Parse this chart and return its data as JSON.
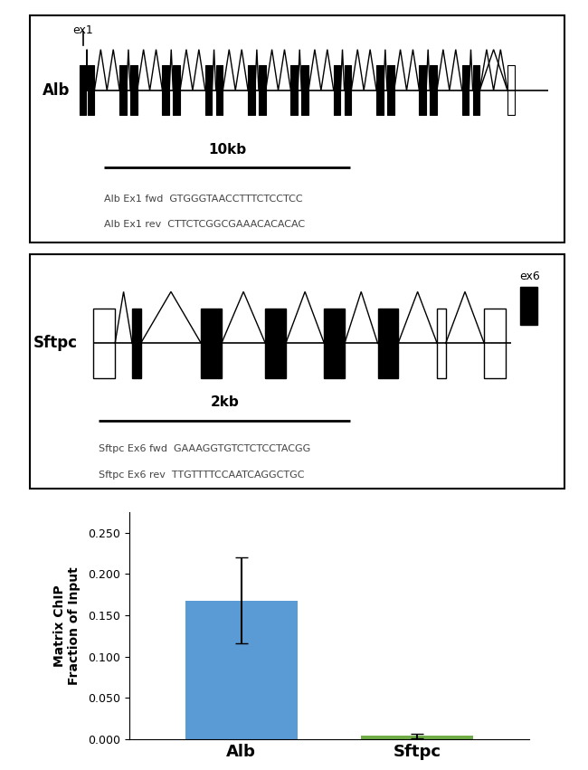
{
  "alb_label": "Alb",
  "alb_ex_label": "ex1",
  "alb_scale_label": "10kb",
  "alb_fwd_primer": "Alb Ex1 fwd  GTGGGTAACCTTTCTCCTCC",
  "alb_rev_primer": "Alb Ex1 rev  CTTCTCGGCGAAACACACAC",
  "sftpc_label": "Sftpc",
  "sftpc_ex_label": "ex6",
  "sftpc_scale_label": "2kb",
  "sftpc_fwd_primer": "Sftpc Ex6 fwd  GAAAGGTGTCTCTCCTACGG",
  "sftpc_rev_primer": "Sftpc Ex6 rev  TTGTTTTCCAATCAGGCTGC",
  "bar_labels": [
    "Alb",
    "Sftpc"
  ],
  "bar_values": [
    0.168,
    0.004
  ],
  "bar_errors": [
    0.052,
    0.003
  ],
  "bar_colors": [
    "#5b9bd5",
    "#70ad47"
  ],
  "ylabel": "Matrix ChIP\nFraction of Input",
  "ylim": [
    0,
    0.275
  ],
  "yticks": [
    0.0,
    0.05,
    0.1,
    0.15,
    0.2,
    0.25
  ],
  "bg_color": "#ffffff"
}
